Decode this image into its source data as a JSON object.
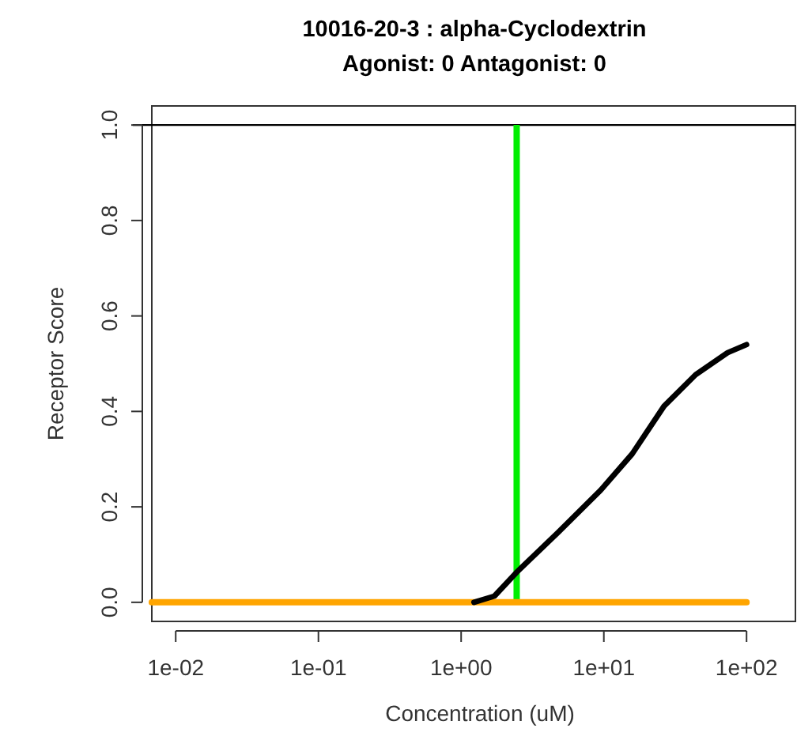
{
  "chart_data": {
    "type": "line",
    "title": "10016-20-3 : alpha-Cyclodextrin",
    "subtitle": "Agonist: 0  Antagonist: 0",
    "xlabel": "Concentration (uM)",
    "ylabel": "Receptor Score",
    "log": "x",
    "xlim": [
      0.0068,
      220
    ],
    "ylim": [
      -0.04,
      1.04
    ],
    "xticks": [
      {
        "value": 0.01,
        "label": "1e-02"
      },
      {
        "value": 0.1,
        "label": "1e-01"
      },
      {
        "value": 1,
        "label": "1e+00"
      },
      {
        "value": 10,
        "label": "1e+01"
      },
      {
        "value": 100,
        "label": "1e+02"
      }
    ],
    "yticks": [
      {
        "value": 0,
        "label": "0.0"
      },
      {
        "value": 0.2,
        "label": "0.2"
      },
      {
        "value": 0.4,
        "label": "0.4"
      },
      {
        "value": 0.6,
        "label": "0.6"
      },
      {
        "value": 0.8,
        "label": "0.8"
      },
      {
        "value": 1,
        "label": "1.0"
      }
    ],
    "series": [
      {
        "color": "#ffa500",
        "x": [
          0.0068,
          100
        ],
        "values": [
          0,
          0
        ]
      },
      {
        "color": "#000000",
        "x": [
          1.23,
          1.71,
          2.45,
          4.76,
          9.5,
          15.8,
          26.4,
          44,
          73.6,
          100
        ],
        "values": [
          0,
          0.013,
          0.063,
          0.146,
          0.235,
          0.311,
          0.411,
          0.477,
          0.523,
          0.54
        ]
      }
    ],
    "ref_lines": [
      {
        "axis": "y",
        "value": 1,
        "color": "#000000"
      },
      {
        "axis": "x",
        "value": 2.45,
        "color": "#00ee00"
      }
    ]
  }
}
